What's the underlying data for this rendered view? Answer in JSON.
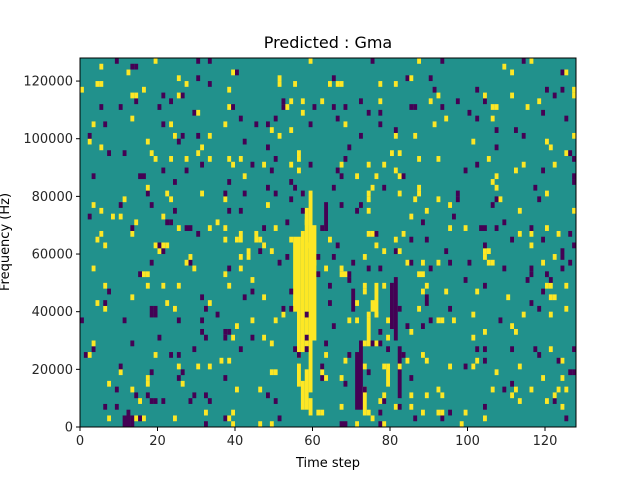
{
  "chart_data": {
    "type": "heatmap",
    "title": "Predicted : Gma",
    "xlabel": "Time step",
    "ylabel": "Frequency (Hz)",
    "xlim": [
      0,
      128
    ],
    "ylim": [
      0,
      128000
    ],
    "x_ticks": [
      0,
      20,
      40,
      60,
      80,
      100,
      120
    ],
    "x_tick_labels": [
      "0",
      "20",
      "40",
      "60",
      "80",
      "100",
      "120"
    ],
    "y_ticks": [
      0,
      20000,
      40000,
      60000,
      80000,
      100000,
      120000
    ],
    "y_tick_labels": [
      "0",
      "20000",
      "40000",
      "60000",
      "80000",
      "100000",
      "120000"
    ],
    "n_time_steps": 128,
    "n_freq_bins": 64,
    "freq_bin_width_hz": 2000,
    "colormap": "viridis",
    "value_levels": [
      -1,
      0,
      1
    ],
    "colors": {
      "-1": "#440154",
      "0": "#21918c",
      "1": "#fde725"
    },
    "background_value": 0,
    "grid": false,
    "legend": "none",
    "note_cells": [
      {
        "t": 56,
        "f0": 24000,
        "f1": 66000,
        "value": 1
      },
      {
        "t": 57,
        "f0": 26000,
        "f1": 68000,
        "value": 1
      },
      {
        "t": 58,
        "f0": 28000,
        "f1": 76000,
        "value": 1
      },
      {
        "t": 59,
        "f0": 12000,
        "f1": 82000,
        "value": 1
      },
      {
        "t": 60,
        "f0": 30000,
        "f1": 70000,
        "value": 1
      },
      {
        "t": 55,
        "f0": 40000,
        "f1": 66000,
        "value": 1
      },
      {
        "t": 57,
        "f0": 6000,
        "f1": 16000,
        "value": 1
      },
      {
        "t": 58,
        "f0": 6000,
        "f1": 20000,
        "value": 1
      },
      {
        "t": 59,
        "f0": 4000,
        "f1": 10000,
        "value": 1
      },
      {
        "t": 56,
        "f0": 14000,
        "f1": 22000,
        "value": 1
      },
      {
        "t": 71,
        "f0": 6000,
        "f1": 26000,
        "value": -1
      },
      {
        "t": 72,
        "f0": 6000,
        "f1": 30000,
        "value": -1
      },
      {
        "t": 82,
        "f0": 10000,
        "f1": 28000,
        "value": -1
      },
      {
        "t": 81,
        "f0": 30000,
        "f1": 52000,
        "value": -1
      },
      {
        "t": 80,
        "f0": 34000,
        "f1": 50000,
        "value": -1
      },
      {
        "t": 70,
        "f0": 40000,
        "f1": 48000,
        "value": -1
      },
      {
        "t": 11,
        "f0": 0,
        "f1": 4000,
        "value": -1
      },
      {
        "t": 12,
        "f0": 0,
        "f1": 6000,
        "value": -1
      },
      {
        "t": 13,
        "f0": 0,
        "f1": 4000,
        "value": -1
      },
      {
        "t": 18,
        "f0": 38000,
        "f1": 42000,
        "value": -1
      },
      {
        "t": 19,
        "f0": 38000,
        "f1": 42000,
        "value": -1
      },
      {
        "t": 89,
        "f0": 42000,
        "f1": 46000,
        "value": -1
      },
      {
        "t": 75,
        "f0": 40000,
        "f1": 44000,
        "value": 1
      },
      {
        "t": 76,
        "f0": 38000,
        "f1": 50000,
        "value": 1
      },
      {
        "t": 74,
        "f0": 28000,
        "f1": 38000,
        "value": 1
      },
      {
        "t": 41,
        "f0": 64000,
        "f1": 68000,
        "value": 1
      },
      {
        "t": 45,
        "f0": 64000,
        "f1": 68000,
        "value": 1
      },
      {
        "t": 63,
        "f0": 68000,
        "f1": 78000,
        "value": -1
      },
      {
        "t": 73,
        "f0": 4000,
        "f1": 14000,
        "value": 1
      },
      {
        "t": 79,
        "f0": 14000,
        "f1": 22000,
        "value": 1
      }
    ]
  }
}
